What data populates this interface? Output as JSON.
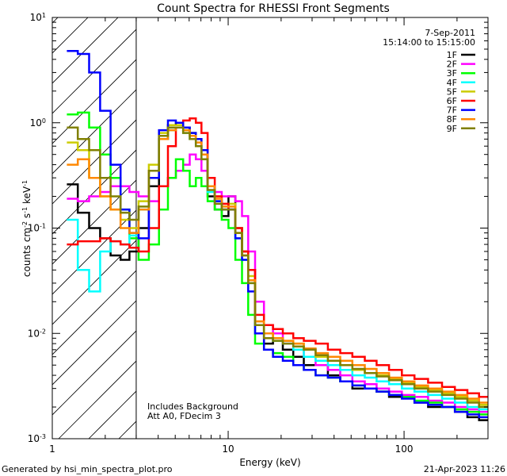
{
  "chart_data": {
    "type": "line",
    "title": "Count Spectra for RHESSI Front Segments",
    "xlabel": "Energy (keV)",
    "ylabel": "counts cm-2 s-1 keV-1",
    "xscale": "log",
    "yscale": "log",
    "xlim": [
      1,
      300
    ],
    "ylim": [
      0.001,
      10
    ],
    "x_ticks": [
      {
        "value": 1,
        "label": "1"
      },
      {
        "value": 10,
        "label": "10"
      },
      {
        "value": 100,
        "label": "100"
      }
    ],
    "y_ticks": [
      {
        "value": 0.001,
        "base": "10",
        "exp": "-3"
      },
      {
        "value": 0.01,
        "base": "10",
        "exp": "-2"
      },
      {
        "value": 0.1,
        "base": "10",
        "exp": "-1"
      },
      {
        "value": 1,
        "base": "10",
        "exp": "0"
      },
      {
        "value": 10,
        "base": "10",
        "exp": "1"
      }
    ],
    "date": "7-Sep-2011",
    "time_range": "15:14:00 to 15:15:00",
    "hatched_region": [
      1,
      3
    ],
    "annotations": [
      "Includes Background",
      "Att A0, FDecim 3"
    ],
    "footer_left": "Generated by hsi_min_spectra_plot.pro",
    "footer_right": "21-Apr-2023 11:26",
    "energy_keV": [
      1.3,
      1.5,
      1.75,
      2.0,
      2.3,
      2.6,
      2.9,
      3.3,
      3.8,
      4.3,
      4.8,
      5.3,
      5.8,
      6.3,
      6.8,
      7.3,
      8.0,
      8.8,
      9.6,
      10.5,
      11.5,
      12.5,
      13.5,
      15,
      17,
      19,
      22,
      25,
      29,
      34,
      40,
      47,
      55,
      65,
      75,
      90,
      105,
      125,
      150,
      180,
      210,
      250,
      285
    ],
    "series": [
      {
        "name": "1F",
        "color": "#000000",
        "values": [
          0.26,
          0.14,
          0.1,
          0.08,
          0.055,
          0.05,
          0.06,
          0.1,
          0.25,
          0.7,
          0.95,
          1.0,
          0.9,
          0.8,
          0.7,
          0.5,
          0.2,
          0.15,
          0.13,
          0.2,
          0.1,
          0.06,
          0.04,
          0.012,
          0.008,
          0.009,
          0.007,
          0.006,
          0.005,
          0.005,
          0.004,
          0.0035,
          0.003,
          0.003,
          0.0028,
          0.0025,
          0.0025,
          0.0022,
          0.002,
          0.002,
          0.0018,
          0.0016,
          0.0015
        ]
      },
      {
        "name": "2F",
        "color": "#ff00ff",
        "values": [
          0.19,
          0.18,
          0.2,
          0.22,
          0.25,
          0.25,
          0.22,
          0.2,
          0.18,
          0.25,
          0.3,
          0.35,
          0.4,
          0.5,
          0.45,
          0.35,
          0.25,
          0.22,
          0.2,
          0.2,
          0.18,
          0.13,
          0.06,
          0.02,
          0.012,
          0.01,
          0.008,
          0.007,
          0.006,
          0.005,
          0.0045,
          0.004,
          0.0035,
          0.0033,
          0.003,
          0.0028,
          0.0026,
          0.0025,
          0.0023,
          0.0022,
          0.002,
          0.0019,
          0.0018
        ]
      },
      {
        "name": "3F",
        "color": "#00ff00",
        "values": [
          1.2,
          1.25,
          0.9,
          0.5,
          0.3,
          0.15,
          0.08,
          0.05,
          0.07,
          0.15,
          0.3,
          0.45,
          0.35,
          0.25,
          0.3,
          0.25,
          0.18,
          0.15,
          0.12,
          0.1,
          0.05,
          0.03,
          0.015,
          0.008,
          0.007,
          0.0065,
          0.006,
          0.005,
          0.0045,
          0.004,
          0.0038,
          0.0035,
          0.0032,
          0.003,
          0.0028,
          0.0026,
          0.0025,
          0.0023,
          0.0022,
          0.002,
          0.0019,
          0.0018,
          0.0017
        ]
      },
      {
        "name": "4F",
        "color": "#00ffff",
        "values": [
          0.12,
          0.04,
          0.025,
          0.06,
          0.075,
          0.07,
          0.085,
          0.15,
          0.35,
          0.7,
          0.85,
          0.9,
          0.8,
          0.7,
          0.6,
          0.45,
          0.22,
          0.18,
          0.15,
          0.15,
          0.08,
          0.05,
          0.03,
          0.012,
          0.009,
          0.0085,
          0.008,
          0.007,
          0.006,
          0.0055,
          0.005,
          0.0045,
          0.004,
          0.0038,
          0.0035,
          0.0033,
          0.003,
          0.0028,
          0.0026,
          0.0024,
          0.0022,
          0.002,
          0.0019
        ]
      },
      {
        "name": "5F",
        "color": "#cccc00",
        "values": [
          0.65,
          0.55,
          0.3,
          0.2,
          0.15,
          0.12,
          0.1,
          0.18,
          0.4,
          0.8,
          0.95,
          0.95,
          0.85,
          0.8,
          0.7,
          0.5,
          0.25,
          0.2,
          0.17,
          0.17,
          0.1,
          0.06,
          0.035,
          0.013,
          0.01,
          0.009,
          0.0085,
          0.008,
          0.007,
          0.006,
          0.0055,
          0.005,
          0.0045,
          0.0042,
          0.004,
          0.0037,
          0.0034,
          0.0031,
          0.0029,
          0.0027,
          0.0025,
          0.0023,
          0.0021
        ]
      },
      {
        "name": "6F",
        "color": "#ff0000",
        "values": [
          0.07,
          0.075,
          0.075,
          0.08,
          0.075,
          0.07,
          0.065,
          0.06,
          0.1,
          0.25,
          0.6,
          0.9,
          1.05,
          1.1,
          1.0,
          0.8,
          0.3,
          0.2,
          0.17,
          0.15,
          0.1,
          0.06,
          0.04,
          0.015,
          0.012,
          0.011,
          0.01,
          0.009,
          0.0085,
          0.008,
          0.007,
          0.0065,
          0.006,
          0.0055,
          0.005,
          0.0045,
          0.004,
          0.0037,
          0.0034,
          0.0031,
          0.0029,
          0.0027,
          0.0025
        ]
      },
      {
        "name": "7F",
        "color": "#0000ff",
        "values": [
          4.8,
          4.5,
          3.0,
          1.3,
          0.4,
          0.15,
          0.09,
          0.08,
          0.3,
          0.85,
          1.05,
          1.0,
          0.9,
          0.8,
          0.7,
          0.55,
          0.25,
          0.18,
          0.15,
          0.15,
          0.08,
          0.05,
          0.025,
          0.01,
          0.007,
          0.006,
          0.0055,
          0.005,
          0.0045,
          0.004,
          0.0038,
          0.0035,
          0.0032,
          0.003,
          0.0028,
          0.0026,
          0.0024,
          0.0022,
          0.0021,
          0.002,
          0.0018,
          0.0017,
          0.0016
        ]
      },
      {
        "name": "8F",
        "color": "#ff8800",
        "values": [
          0.4,
          0.45,
          0.3,
          0.2,
          0.15,
          0.1,
          0.09,
          0.15,
          0.35,
          0.7,
          0.85,
          0.9,
          0.85,
          0.75,
          0.65,
          0.5,
          0.25,
          0.19,
          0.16,
          0.16,
          0.09,
          0.055,
          0.032,
          0.013,
          0.01,
          0.009,
          0.0085,
          0.008,
          0.0072,
          0.0065,
          0.006,
          0.0055,
          0.005,
          0.0046,
          0.0042,
          0.0038,
          0.0035,
          0.0032,
          0.003,
          0.0028,
          0.0026,
          0.0024,
          0.0022
        ]
      },
      {
        "name": "9F",
        "color": "#808000",
        "values": [
          0.9,
          0.7,
          0.55,
          0.3,
          0.2,
          0.14,
          0.12,
          0.16,
          0.35,
          0.75,
          0.9,
          0.9,
          0.8,
          0.7,
          0.6,
          0.45,
          0.23,
          0.17,
          0.15,
          0.15,
          0.09,
          0.055,
          0.03,
          0.012,
          0.009,
          0.0085,
          0.008,
          0.0075,
          0.007,
          0.0062,
          0.0055,
          0.005,
          0.0046,
          0.0042,
          0.0039,
          0.0036,
          0.0033,
          0.003,
          0.0028,
          0.0026,
          0.0024,
          0.0022,
          0.002
        ]
      }
    ]
  }
}
